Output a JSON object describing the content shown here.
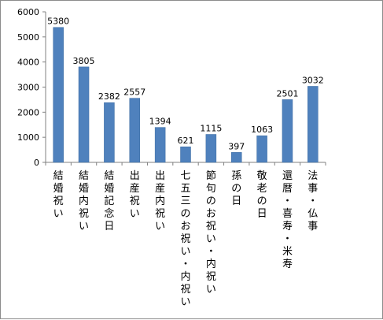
{
  "chart_data": {
    "type": "bar",
    "categories": [
      "結婚祝い",
      "結婚内祝い",
      "結婚記念日",
      "出産祝い",
      "出産内祝い",
      "七五三のお祝い・内祝い",
      "節句のお祝い・内祝い",
      "孫の日",
      "敬老の日",
      "還暦・喜寿・米寿",
      "法事・仏事"
    ],
    "values": [
      5380,
      3805,
      2382,
      2557,
      1394,
      621,
      1115,
      397,
      1063,
      2501,
      3032
    ],
    "data_labels": [
      "5380",
      "3805",
      "2382",
      "2557",
      "1394",
      "621",
      "1115",
      "397",
      "1063",
      "2501",
      "3032"
    ],
    "y_ticks": [
      "0",
      "1000",
      "2000",
      "3000",
      "4000",
      "5000",
      "6000"
    ],
    "ylim": [
      0,
      6000
    ],
    "grid": false,
    "legend": "none",
    "colors": {
      "bar": "#4f81bd",
      "bar_edge": "#3a6aa0",
      "axis": "#808080",
      "frame": "#8c8c8c"
    }
  }
}
